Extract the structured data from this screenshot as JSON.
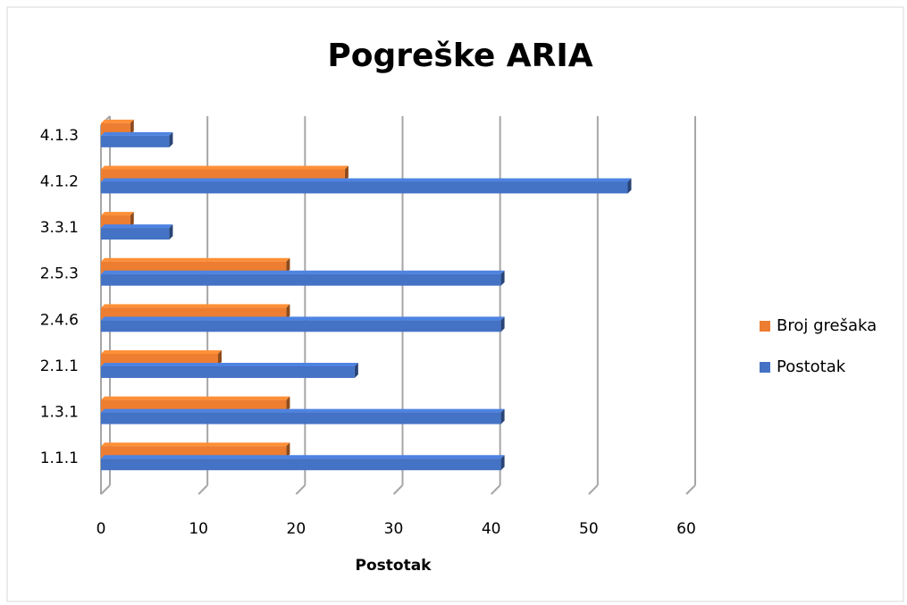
{
  "chart_data": {
    "type": "bar",
    "orientation": "horizontal",
    "title": "Pogreške ARIA",
    "x_label": "Postotak",
    "categories": [
      "1.1.1",
      "1.3.1",
      "2.1.1",
      "2.4.6",
      "2.5.3",
      "3.3.1",
      "4.1.2",
      "4.1.3"
    ],
    "series": [
      {
        "name": "Broj grešaka",
        "color": "#ed7d31",
        "values": [
          19,
          19,
          12,
          19,
          19,
          3,
          25,
          3
        ]
      },
      {
        "name": "Postotak",
        "color": "#4472c4",
        "values": [
          41,
          41,
          26,
          41,
          41,
          7,
          54,
          7
        ]
      }
    ],
    "xlim": [
      0,
      60
    ],
    "xticks": [
      0,
      10,
      20,
      30,
      40,
      50,
      60
    ],
    "grid": true,
    "legend": "right"
  }
}
